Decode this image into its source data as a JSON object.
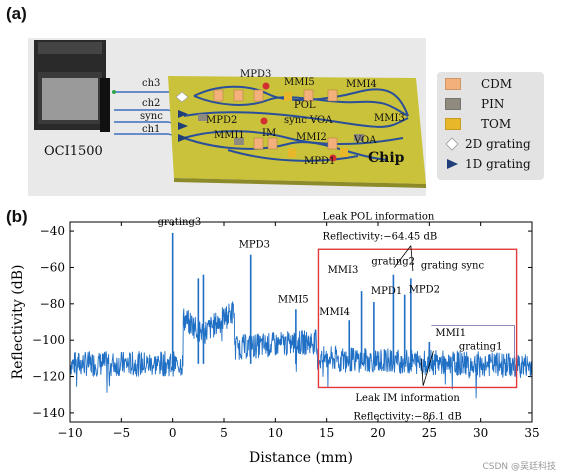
{
  "panel_a": {
    "label": "(a)",
    "instrument": "OCI1500",
    "chip_label": "Chip",
    "channels": [
      "ch3",
      "ch2",
      "sync",
      "ch1"
    ],
    "components": {
      "mpd3": "MPD3",
      "mmi5": "MMI5",
      "mmi4": "MMI4",
      "pol": "POL",
      "mpd2": "MPD2",
      "sync_voa": "sync VOA",
      "mmi3": "MMI3",
      "im": "IM",
      "mmi1": "MMI1",
      "mmi2": "MMI2",
      "voa": "VOA",
      "mpd1": "MPD1"
    },
    "legend": [
      {
        "label": "CDM",
        "color": "#f3b07a",
        "icon": "rect-swatch"
      },
      {
        "label": "PIN",
        "color": "#8e8a80",
        "icon": "rect-swatch"
      },
      {
        "label": "TOM",
        "color": "#e9b82a",
        "icon": "rect-swatch"
      },
      {
        "label": "2D grating",
        "color": "#ffffff",
        "icon": "diamond"
      },
      {
        "label": "1D grating",
        "color": "#1f3e7a",
        "icon": "arrow"
      }
    ]
  },
  "panel_b": {
    "label": "(b)",
    "annotations": {
      "leak_pol_title": "Leak POL information",
      "leak_pol_value": "Reflectivity:−64.45 dB",
      "leak_im_title": "Leak IM information",
      "leak_im_value": "Reflectivity:−86.1 dB"
    }
  },
  "chart_data": {
    "type": "line",
    "xlabel": "Distance (mm)",
    "ylabel": "Reflectivity (dB)",
    "xlim": [
      -10,
      35
    ],
    "ylim": [
      -145,
      -35
    ],
    "xticks": [
      -10,
      -5,
      0,
      5,
      10,
      15,
      20,
      25,
      30,
      35
    ],
    "yticks": [
      -40,
      -60,
      -80,
      -100,
      -120,
      -140
    ],
    "series_color": "#1f6fc5",
    "baseline_db": -113,
    "peaks": [
      {
        "label": "grating3",
        "x": 0.0,
        "y": -41
      },
      {
        "label": "",
        "x": 2.5,
        "y": -66
      },
      {
        "label": "",
        "x": 3.0,
        "y": -64
      },
      {
        "label": "MPD3",
        "x": 7.6,
        "y": -53
      },
      {
        "label": "MMI5",
        "x": 12.0,
        "y": -83
      },
      {
        "label": "MMI4",
        "x": 17.2,
        "y": -89
      },
      {
        "label": "MMI3",
        "x": 18.4,
        "y": -73
      },
      {
        "label": "MPD1",
        "x": 19.6,
        "y": -79
      },
      {
        "label": "grating2",
        "x": 21.5,
        "y": -64
      },
      {
        "label": "MPD2",
        "x": 22.6,
        "y": -75
      },
      {
        "label": "grating sync",
        "x": 23.2,
        "y": -66
      },
      {
        "label": "MMI1",
        "x": 25.0,
        "y": -101
      },
      {
        "label": "grating1",
        "x": 30.8,
        "y": -108
      }
    ]
  },
  "footer": {
    "watermark": "CSDN @吴廷科技"
  }
}
